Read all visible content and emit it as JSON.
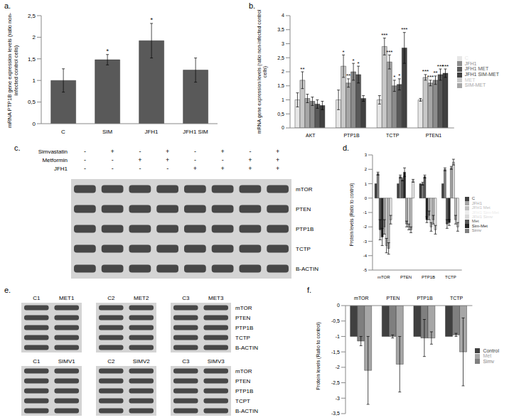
{
  "chart_data": [
    {
      "type": "bar",
      "title": "a.",
      "ylabel": "mRNA PTP1B gene expression levels (ratio non-infected control cells)",
      "categories": [
        "C",
        "SIM",
        "JFH1",
        "JFH1 SIM"
      ],
      "values": [
        1.0,
        1.48,
        1.92,
        1.24
      ],
      "errors": [
        0.27,
        0.12,
        0.4,
        0.28
      ],
      "annotations": [
        null,
        "*",
        "*",
        null
      ],
      "color": "#595959",
      "ylim": [
        0,
        2.5
      ],
      "yticks": [
        0,
        {
          "value": 0.5,
          "label": "0,5"
        },
        1,
        {
          "value": 1.5,
          "label": "1,5"
        },
        2,
        {
          "value": 2.5,
          "label": "2,5"
        }
      ]
    },
    {
      "type": "bar",
      "title": "b.",
      "ylabel": "mRNA gene expression levels (ratio non-infected control cells)",
      "categories": [
        "AKT",
        "PTP1B",
        "TCTP",
        "PTEN1"
      ],
      "legend": "right",
      "ylim": [
        0,
        4
      ],
      "yticks": [
        0,
        {
          "value": 0.5,
          "label": "0,5"
        },
        1,
        {
          "value": 1.5,
          "label": "1,5"
        },
        2,
        {
          "value": 2.5,
          "label": "2,5"
        },
        3,
        {
          "value": 3.5,
          "label": "3,5"
        },
        4
      ],
      "series": [
        {
          "name": "C",
          "color": "#e6e6e6",
          "values": [
            1,
            1,
            1,
            1
          ],
          "errors": [
            0.25,
            0.35,
            0.15,
            0.05
          ],
          "annotations": [
            null,
            null,
            null,
            null
          ]
        },
        {
          "name": "MET",
          "color": "#c8c8c8",
          "values": [
            1.7,
            2.2,
            2.9,
            1.8
          ],
          "errors": [
            0.3,
            0.4,
            0.3,
            0.1
          ],
          "annotations": [
            "**",
            "*",
            "***",
            "***"
          ]
        },
        {
          "name": "SIM-MET",
          "color": "#a6a6a6",
          "values": [
            1.05,
            1.6,
            2.35,
            1.6
          ],
          "errors": [
            0.15,
            0.15,
            0.25,
            0.1
          ],
          "annotations": [
            null,
            "**",
            "***",
            "***"
          ]
        },
        {
          "name": "JFH1",
          "color": "#8c8c8c",
          "values": [
            0.95,
            2.0,
            1.5,
            1.7
          ],
          "errors": [
            0.15,
            0.3,
            0.2,
            0.15
          ],
          "annotations": [
            null,
            "*",
            "*",
            "**"
          ]
        },
        {
          "name": "JFH1 MET",
          "color": "#595959",
          "values": [
            0.85,
            1.9,
            1.55,
            1.9
          ],
          "errors": [
            0.15,
            0.3,
            0.2,
            0.2
          ],
          "annotations": [
            null,
            "*",
            "*",
            "***"
          ]
        },
        {
          "name": "JFH1 SIM-MET",
          "color": "#404040",
          "values": [
            0.8,
            1.05,
            2.85,
            1.95
          ],
          "errors": [
            0.15,
            0.1,
            0.55,
            0.15
          ],
          "annotations": [
            null,
            null,
            "***",
            "***"
          ]
        }
      ]
    },
    {
      "type": "bar",
      "title": "d.",
      "ylabel": "Protein levels (Ratio to control)",
      "categories": [
        "mTOR",
        "PTEN",
        "PTP1B",
        "TCTP"
      ],
      "legend": "right",
      "ylim": [
        -5,
        3
      ],
      "yticks": [
        -5,
        -4,
        -3,
        -2,
        -1,
        0,
        1,
        2,
        3
      ],
      "series": [
        {
          "name": "C",
          "color": "#404040",
          "values": [
            1,
            1,
            1,
            1
          ],
          "errors": [
            0,
            0,
            0,
            0
          ]
        },
        {
          "name": "Simv",
          "color": "#7f7f7f",
          "values": [
            1.7,
            1.5,
            1.0,
            2.0
          ],
          "errors": [
            0.1,
            0.1,
            0.1,
            0.1
          ]
        },
        {
          "name": "Met",
          "color": "#595959",
          "values": [
            -2.2,
            1.3,
            1.5,
            -1.8
          ],
          "errors": [
            0.7,
            0.1,
            0.1,
            0.3
          ]
        },
        {
          "name": "Sim-Met",
          "color": "#262626",
          "values": [
            -2.7,
            1.8,
            -1.5,
            -1.7
          ],
          "errors": [
            0.6,
            0.3,
            0.2,
            0.2
          ]
        },
        {
          "name": "JFH1",
          "color": "#a6a6a6",
          "values": [
            -2.0,
            -1.8,
            -1.2,
            2.1
          ],
          "errors": [
            0.5,
            0.2,
            0.3,
            0.1
          ]
        },
        {
          "name": "JFH1 Simv",
          "color": "#d9d9d9",
          "values": [
            -3.3,
            -2.0,
            -2.0,
            2.5
          ],
          "errors": [
            0.5,
            0.2,
            0.3,
            0.2
          ]
        },
        {
          "name": "JFH1 Met",
          "color": "#bfbfbf",
          "values": [
            -3.5,
            -2.2,
            -1.5,
            -1.5
          ],
          "errors": [
            0.4,
            0.2,
            0.3,
            0.3
          ]
        },
        {
          "name": "JFH1 Sim-Met",
          "color": "#ececec",
          "values": [
            -1.5,
            1.2,
            -2.2,
            -2.0
          ],
          "errors": [
            0.3,
            0.1,
            0.3,
            0.3
          ]
        }
      ]
    },
    {
      "type": "bar",
      "title": "f.",
      "ylabel": "Protein levels (Ratio to control)",
      "categories": [
        "mTOR",
        "PTEN",
        "PTP1B",
        "TCTP"
      ],
      "legend": "right",
      "ylim": [
        -3.5,
        0
      ],
      "yticks": [
        {
          "value": -3.5,
          "label": "-3,5"
        },
        -3,
        {
          "value": -2.5,
          "label": "-2,5"
        },
        -2,
        {
          "value": -1.5,
          "label": "-1,5"
        },
        -1,
        {
          "value": -0.5,
          "label": "-0,5"
        },
        0
      ],
      "series": [
        {
          "name": "Control",
          "color": "#404040",
          "values": [
            -1,
            -1,
            -1,
            -1
          ],
          "errors": [
            0,
            0,
            0,
            0
          ]
        },
        {
          "name": "Simv",
          "color": "#7f7f7f",
          "values": [
            -1.15,
            -1.0,
            -1.05,
            -0.95
          ],
          "errors": [
            0.15,
            0.05,
            0.6,
            0.05
          ]
        },
        {
          "name": "Met",
          "color": "#a6a6a6",
          "values": [
            -2.1,
            -1.9,
            -1.05,
            -1.5
          ],
          "errors": [
            1.1,
            0.9,
            0.2,
            1.1
          ]
        }
      ]
    }
  ],
  "blots": [
    {
      "title": "c.",
      "conditions": [
        {
          "name": "Simvastatin",
          "signs": [
            "-",
            "+",
            "-",
            "+",
            "-",
            "+",
            "-",
            "+"
          ]
        },
        {
          "name": "Metformin",
          "signs": [
            "-",
            "-",
            "+",
            "+",
            "-",
            "-",
            "+",
            "+"
          ]
        },
        {
          "name": "JFH1",
          "signs": [
            "-",
            "-",
            "-",
            "-",
            "+",
            "+",
            "+",
            "+"
          ]
        }
      ],
      "rows": [
        "mTOR",
        "PTEN",
        "PTP1B",
        "TCTP",
        "B-ACTIN"
      ]
    },
    {
      "title": "e.",
      "groups": [
        {
          "lanes": [
            [
              "C1",
              "MET1"
            ],
            [
              "C2",
              "MET2"
            ],
            [
              "C3",
              "MET3"
            ]
          ],
          "rows": [
            "mTOR",
            "PTEN",
            "PTP1B",
            "TCTP",
            "B-ACTIN"
          ]
        },
        {
          "lanes": [
            [
              "C1",
              "SIMV1"
            ],
            [
              "C2",
              "SIMV2"
            ],
            [
              "C3",
              "SIMV3"
            ]
          ],
          "rows": [
            "mTOR",
            "PTEN",
            "PTP1B",
            "TCPT",
            "B-ACTIN"
          ]
        }
      ]
    }
  ]
}
